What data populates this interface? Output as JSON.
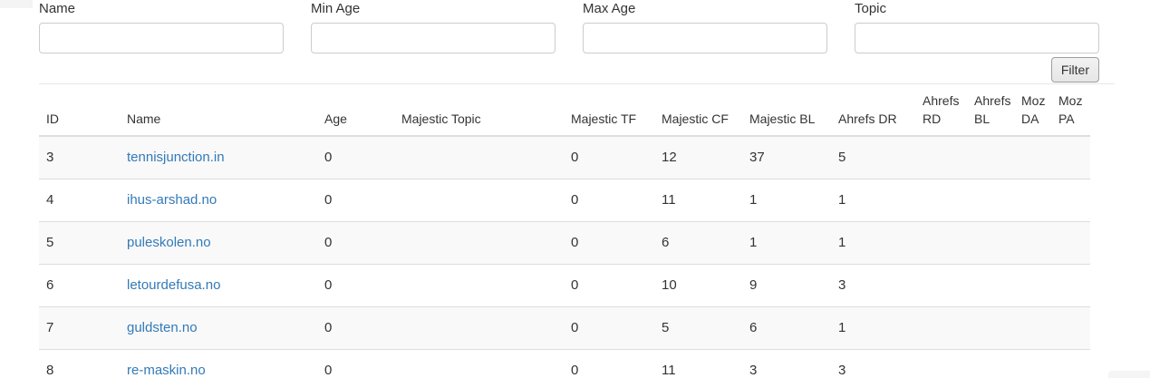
{
  "filters": {
    "fields": [
      {
        "key": "name",
        "label": "Name",
        "value": ""
      },
      {
        "key": "min-age",
        "label": "Min Age",
        "value": ""
      },
      {
        "key": "max-age",
        "label": "Max Age",
        "value": ""
      },
      {
        "key": "topic",
        "label": "Topic",
        "value": ""
      }
    ],
    "button_label": "Filter"
  },
  "table": {
    "columns": [
      "ID",
      "Name",
      "Age",
      "Majestic Topic",
      "Majestic TF",
      "Majestic CF",
      "Majestic BL",
      "Ahrefs DR",
      "Ahrefs RD",
      "Ahrefs BL",
      "Moz DA",
      "Moz PA"
    ],
    "rows": [
      {
        "id": "3",
        "name": "tennisjunction.in",
        "age": "0",
        "majestic_topic": "",
        "majestic_tf": "0",
        "majestic_cf": "12",
        "majestic_bl": "37",
        "ahrefs_dr": "5",
        "ahrefs_rd": "",
        "ahrefs_bl": "",
        "moz_da": "",
        "moz_pa": ""
      },
      {
        "id": "4",
        "name": "ihus-arshad.no",
        "age": "0",
        "majestic_topic": "",
        "majestic_tf": "0",
        "majestic_cf": "11",
        "majestic_bl": "1",
        "ahrefs_dr": "1",
        "ahrefs_rd": "",
        "ahrefs_bl": "",
        "moz_da": "",
        "moz_pa": ""
      },
      {
        "id": "5",
        "name": "puleskolen.no",
        "age": "0",
        "majestic_topic": "",
        "majestic_tf": "0",
        "majestic_cf": "6",
        "majestic_bl": "1",
        "ahrefs_dr": "1",
        "ahrefs_rd": "",
        "ahrefs_bl": "",
        "moz_da": "",
        "moz_pa": ""
      },
      {
        "id": "6",
        "name": "letourdefusa.no",
        "age": "0",
        "majestic_topic": "",
        "majestic_tf": "0",
        "majestic_cf": "10",
        "majestic_bl": "9",
        "ahrefs_dr": "3",
        "ahrefs_rd": "",
        "ahrefs_bl": "",
        "moz_da": "",
        "moz_pa": ""
      },
      {
        "id": "7",
        "name": "guldsten.no",
        "age": "0",
        "majestic_topic": "",
        "majestic_tf": "0",
        "majestic_cf": "5",
        "majestic_bl": "6",
        "ahrefs_dr": "1",
        "ahrefs_rd": "",
        "ahrefs_bl": "",
        "moz_da": "",
        "moz_pa": ""
      },
      {
        "id": "8",
        "name": "re-maskin.no",
        "age": "0",
        "majestic_topic": "",
        "majestic_tf": "0",
        "majestic_cf": "11",
        "majestic_bl": "3",
        "ahrefs_dr": "3",
        "ahrefs_rd": "",
        "ahrefs_bl": "",
        "moz_da": "",
        "moz_pa": ""
      }
    ]
  },
  "colors": {
    "link": "#337ab7",
    "row_stripe": "#f9f9f9",
    "table_border": "#dddddd",
    "divider": "#e7e7e7",
    "button_bg": "#f2f2f2",
    "button_border": "#9e9e9e"
  }
}
